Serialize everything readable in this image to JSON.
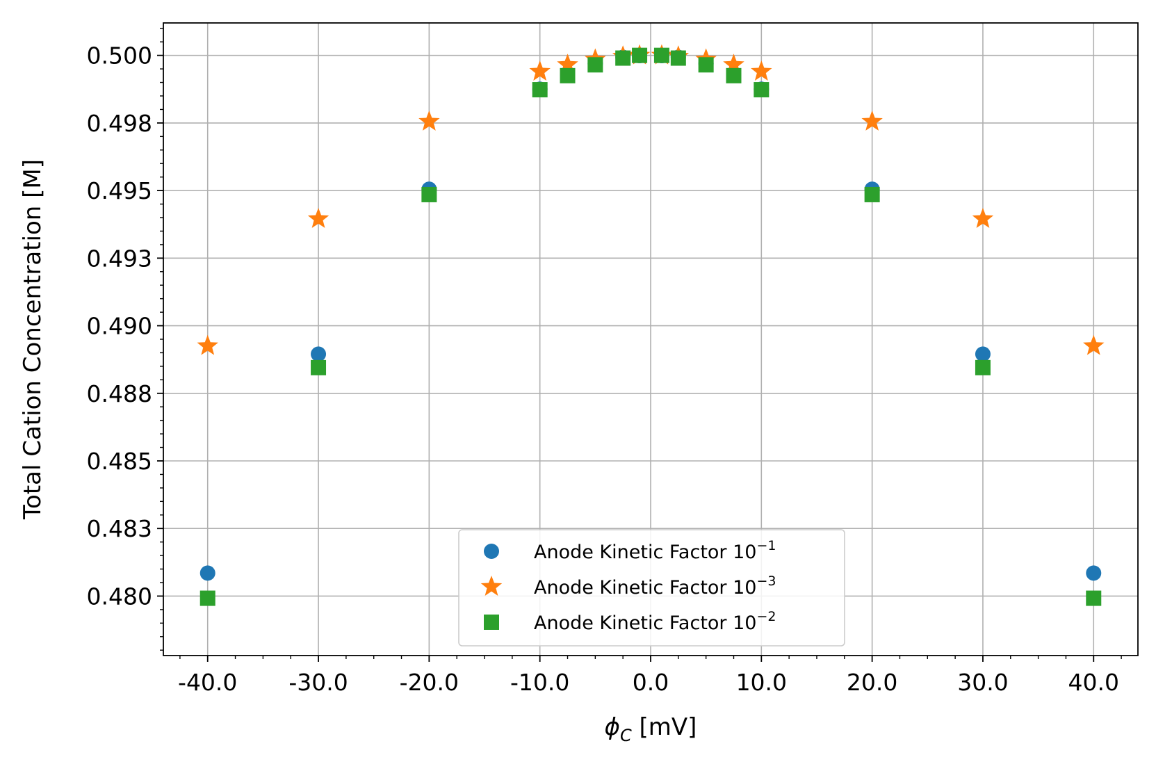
{
  "chart_data": {
    "type": "scatter",
    "title": "",
    "xlabel": {
      "symbol": "ϕ",
      "subscript": "C",
      "unit": " [mV]"
    },
    "ylabel": "Total Cation Concentration [M]",
    "xlim": [
      -44,
      44
    ],
    "ylim": [
      0.4778,
      0.5012
    ],
    "grid": true,
    "legend_position": "lower center",
    "x_ticks": [
      -40,
      -30,
      -20,
      -10,
      0,
      10,
      20,
      30,
      40
    ],
    "x_tick_labels": [
      "-40.0",
      "-30.0",
      "-20.0",
      "-10.0",
      "0.0",
      "10.0",
      "20.0",
      "30.0",
      "40.0"
    ],
    "y_ticks": [
      0.48,
      0.4825,
      0.485,
      0.4875,
      0.49,
      0.4925,
      0.495,
      0.4975,
      0.5
    ],
    "y_tick_labels": [
      "0.480",
      "0.483",
      "0.485",
      "0.488",
      "0.490",
      "0.493",
      "0.495",
      "0.498",
      "0.500"
    ],
    "series": [
      {
        "name": "Anode Kinetic Factor 10",
        "exponent": "−1",
        "marker": "circle",
        "color": "#1f77b4",
        "x": [
          -40,
          -30,
          -20,
          -10,
          -7.5,
          -5,
          -2.5,
          -1,
          1,
          2.5,
          5,
          7.5,
          10,
          20,
          30,
          40
        ],
        "y": [
          0.48085,
          0.48895,
          0.49505,
          0.49875,
          0.4993,
          0.4997,
          0.49993,
          0.49999,
          0.49999,
          0.49993,
          0.4997,
          0.4993,
          0.49875,
          0.49505,
          0.48895,
          0.48085
        ]
      },
      {
        "name": "Anode Kinetic Factor 10",
        "exponent": "−3",
        "marker": "star",
        "color": "#ff7f0e",
        "x": [
          -40,
          -30,
          -20,
          -10,
          -7.5,
          -5,
          -2.5,
          -1,
          1,
          2.5,
          5,
          7.5,
          10,
          20,
          30,
          40
        ],
        "y": [
          0.48925,
          0.49395,
          0.49755,
          0.4994,
          0.49965,
          0.49985,
          0.49996,
          0.5,
          0.5,
          0.49996,
          0.49985,
          0.49965,
          0.4994,
          0.49755,
          0.49395,
          0.48925
        ]
      },
      {
        "name": "Anode Kinetic Factor 10",
        "exponent": "−2",
        "marker": "square",
        "color": "#2ca02c",
        "x": [
          -40,
          -30,
          -20,
          -10,
          -7.5,
          -5,
          -2.5,
          -1,
          1,
          2.5,
          5,
          7.5,
          10,
          20,
          30,
          40
        ],
        "y": [
          0.47992,
          0.48845,
          0.49485,
          0.49873,
          0.49925,
          0.49965,
          0.4999,
          0.5,
          0.5,
          0.4999,
          0.49965,
          0.49925,
          0.49873,
          0.49485,
          0.48845,
          0.47992
        ]
      }
    ]
  }
}
